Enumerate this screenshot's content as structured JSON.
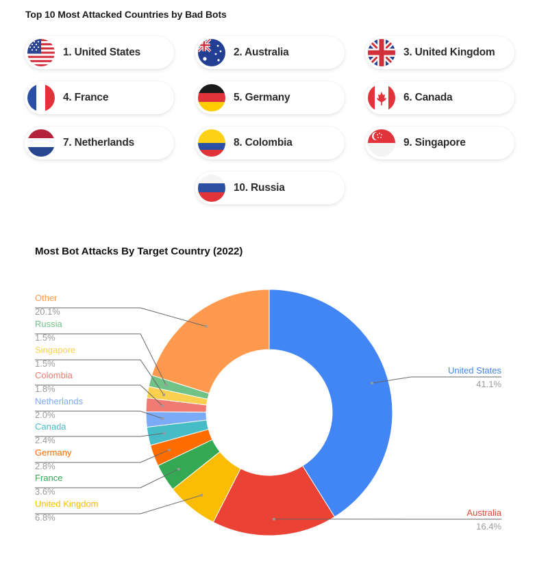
{
  "header": {
    "title": "Top 10 Most Attacked Countries by Bad Bots"
  },
  "countries": [
    {
      "label": "1. United States",
      "flag": "us-flag-icon"
    },
    {
      "label": "2. Australia",
      "flag": "australia-flag-icon"
    },
    {
      "label": "3. United Kingdom",
      "flag": "uk-flag-icon"
    },
    {
      "label": "4. France",
      "flag": "france-flag-icon"
    },
    {
      "label": "5. Germany",
      "flag": "germany-flag-icon"
    },
    {
      "label": "6. Canada",
      "flag": "canada-flag-icon"
    },
    {
      "label": "7. Netherlands",
      "flag": "netherlands-flag-icon"
    },
    {
      "label": "8. Colombia",
      "flag": "colombia-flag-icon"
    },
    {
      "label": "9. Singapore",
      "flag": "singapore-flag-icon"
    },
    {
      "label": "10. Russia",
      "flag": "russia-flag-icon"
    }
  ],
  "chart_data": {
    "type": "pie",
    "title": "Most Bot Attacks By Target Country (2022)",
    "donut": true,
    "legend": "leader-line labels",
    "slices": [
      {
        "name": "United States",
        "value": 41.1,
        "pct_label": "41.1%",
        "color": "#4285F4"
      },
      {
        "name": "Australia",
        "value": 16.4,
        "pct_label": "16.4%",
        "color": "#EA4335"
      },
      {
        "name": "United Kingdom",
        "value": 6.8,
        "pct_label": "6.8%",
        "color": "#FBBC04"
      },
      {
        "name": "France",
        "value": 3.6,
        "pct_label": "3.6%",
        "color": "#34A853"
      },
      {
        "name": "Germany",
        "value": 2.8,
        "pct_label": "2.8%",
        "color": "#FF6D01"
      },
      {
        "name": "Canada",
        "value": 2.4,
        "pct_label": "2.4%",
        "color": "#46BDC6"
      },
      {
        "name": "Netherlands",
        "value": 2.0,
        "pct_label": "2.0%",
        "color": "#7BAAF7"
      },
      {
        "name": "Colombia",
        "value": 1.8,
        "pct_label": "1.8%",
        "color": "#F07B72"
      },
      {
        "name": "Singapore",
        "value": 1.5,
        "pct_label": "1.5%",
        "color": "#FCD04F"
      },
      {
        "name": "Russia",
        "value": 1.5,
        "pct_label": "1.5%",
        "color": "#71C287"
      },
      {
        "name": "Other",
        "value": 20.1,
        "pct_label": "20.1%",
        "color": "#FF994D"
      }
    ]
  }
}
